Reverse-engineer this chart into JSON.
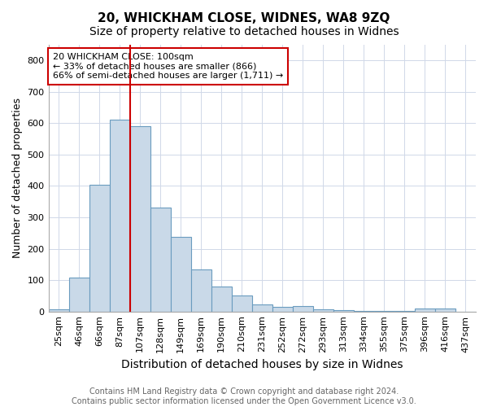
{
  "title1": "20, WHICKHAM CLOSE, WIDNES, WA8 9ZQ",
  "title2": "Size of property relative to detached houses in Widnes",
  "xlabel": "Distribution of detached houses by size in Widnes",
  "ylabel": "Number of detached properties",
  "footer1": "Contains HM Land Registry data © Crown copyright and database right 2024.",
  "footer2": "Contains public sector information licensed under the Open Government Licence v3.0.",
  "bar_labels": [
    "25sqm",
    "46sqm",
    "66sqm",
    "87sqm",
    "107sqm",
    "128sqm",
    "149sqm",
    "169sqm",
    "190sqm",
    "210sqm",
    "231sqm",
    "252sqm",
    "272sqm",
    "293sqm",
    "313sqm",
    "334sqm",
    "355sqm",
    "375sqm",
    "396sqm",
    "416sqm",
    "437sqm"
  ],
  "bar_values": [
    7,
    107,
    403,
    612,
    590,
    330,
    237,
    135,
    79,
    51,
    23,
    15,
    18,
    8,
    4,
    2,
    1,
    1,
    9,
    9,
    0
  ],
  "bar_color": "#c9d9e8",
  "bar_edgecolor": "#6a9cbf",
  "bar_linewidth": 0.8,
  "red_line_index": 4,
  "red_line_color": "#cc0000",
  "annotation_text": "20 WHICKHAM CLOSE: 100sqm\n← 33% of detached houses are smaller (866)\n66% of semi-detached houses are larger (1,711) →",
  "annotation_box_color": "#ffffff",
  "annotation_box_edgecolor": "#cc0000",
  "ylim": [
    0,
    850
  ],
  "yticks": [
    0,
    100,
    200,
    300,
    400,
    500,
    600,
    700,
    800
  ],
  "background_color": "#ffffff",
  "grid_color": "#d0d8e8",
  "title1_fontsize": 11,
  "title2_fontsize": 10,
  "xlabel_fontsize": 10,
  "ylabel_fontsize": 9,
  "tick_fontsize": 8,
  "annotation_fontsize": 8,
  "footer_fontsize": 7
}
